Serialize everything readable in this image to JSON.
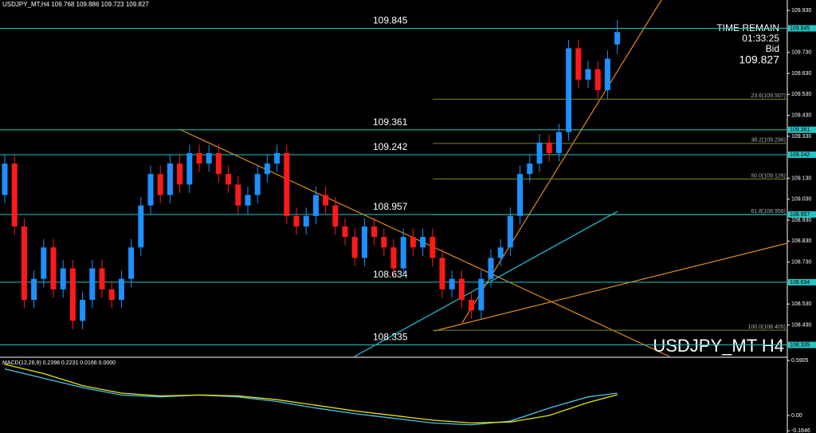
{
  "chart_data": [
    {
      "type": "candlestick",
      "symbol": "USDJPY_MT,H4",
      "watermark": "USDJPY_MT H4",
      "time_remain_label": "TIME REMAIN",
      "time_remain": "01:33:25",
      "bid_label": "Bid",
      "up_color": "#1e90ff",
      "down_color": "#ff1a1a",
      "ylim": [
        108.28,
        109.98
      ],
      "yticks": [
        {
          "value": 109.93,
          "label": "109.930"
        },
        {
          "value": 109.73,
          "label": "109.730"
        },
        {
          "value": 109.63,
          "label": "109.630"
        },
        {
          "value": 109.53,
          "label": "109.530"
        },
        {
          "value": 109.43,
          "label": "109.430"
        },
        {
          "value": 109.33,
          "label": "109.330"
        },
        {
          "value": 109.13,
          "label": "109.130"
        },
        {
          "value": 109.03,
          "label": "109.030"
        },
        {
          "value": 108.93,
          "label": "108.930"
        },
        {
          "value": 108.83,
          "label": "108.830"
        },
        {
          "value": 108.73,
          "label": "108.730"
        },
        {
          "value": 108.53,
          "label": "108.530"
        },
        {
          "value": 108.43,
          "label": "108.430"
        }
      ],
      "levels": [
        109.845,
        109.361,
        109.242,
        108.957,
        108.634,
        108.335
      ],
      "fib_levels": [
        {
          "value": 109.507,
          "label": "23.6(109.507)"
        },
        {
          "value": 109.296,
          "label": "38.2(109.296)"
        },
        {
          "value": 109.126,
          "label": "50.0(109.126)"
        },
        {
          "value": 108.956,
          "label": "61.8(108.956)"
        },
        {
          "value": 108.405,
          "label": "100.0(108.405)"
        }
      ],
      "open": [
        109.05,
        109.2,
        108.9,
        108.55,
        108.65,
        108.8,
        108.6,
        108.7,
        108.45,
        108.55,
        108.7,
        108.6,
        108.55,
        108.65,
        108.8,
        109.0,
        109.15,
        109.05,
        109.2,
        109.1,
        109.25,
        109.2,
        109.25,
        109.15,
        109.1,
        109.0,
        109.05,
        109.15,
        109.2,
        109.25,
        108.95,
        108.9,
        108.95,
        109.05,
        109.0,
        108.9,
        108.85,
        108.75,
        108.9,
        108.85,
        108.8,
        108.7,
        108.85,
        108.8,
        108.85,
        108.75,
        108.6,
        108.65,
        108.55,
        108.5,
        108.65,
        108.75,
        108.8,
        108.95,
        109.15,
        109.2,
        109.3,
        109.25,
        109.35,
        109.75,
        109.6,
        109.65,
        109.55,
        109.768
      ],
      "high": [
        109.24,
        109.24,
        108.94,
        108.69,
        108.84,
        108.84,
        108.74,
        108.74,
        108.59,
        108.74,
        108.74,
        108.64,
        108.69,
        108.84,
        109.04,
        109.19,
        109.19,
        109.24,
        109.24,
        109.29,
        109.29,
        109.29,
        109.29,
        109.19,
        109.14,
        109.09,
        109.19,
        109.24,
        109.29,
        109.29,
        108.99,
        108.99,
        109.09,
        109.09,
        109.04,
        108.94,
        108.89,
        108.94,
        108.94,
        108.89,
        108.84,
        108.89,
        108.89,
        108.89,
        108.89,
        108.79,
        108.69,
        108.69,
        108.59,
        108.69,
        108.79,
        108.84,
        108.99,
        109.19,
        109.24,
        109.34,
        109.34,
        109.39,
        109.79,
        109.79,
        109.69,
        109.69,
        109.74,
        109.886
      ],
      "low": [
        109.01,
        108.86,
        108.51,
        108.51,
        108.61,
        108.56,
        108.56,
        108.41,
        108.41,
        108.51,
        108.56,
        108.51,
        108.51,
        108.61,
        108.76,
        108.96,
        109.01,
        109.01,
        109.06,
        109.06,
        109.16,
        109.16,
        109.11,
        109.06,
        108.96,
        108.96,
        109.01,
        109.11,
        109.16,
        108.91,
        108.86,
        108.86,
        108.91,
        108.96,
        108.86,
        108.81,
        108.71,
        108.71,
        108.81,
        108.76,
        108.66,
        108.66,
        108.76,
        108.76,
        108.71,
        108.56,
        108.56,
        108.51,
        108.46,
        108.46,
        108.61,
        108.71,
        108.76,
        108.91,
        109.11,
        109.16,
        109.21,
        109.21,
        109.31,
        109.56,
        109.56,
        109.51,
        109.51,
        109.723
      ],
      "close": [
        109.2,
        108.9,
        108.55,
        108.65,
        108.8,
        108.6,
        108.7,
        108.45,
        108.55,
        108.7,
        108.6,
        108.55,
        108.65,
        108.8,
        109.0,
        109.15,
        109.05,
        109.2,
        109.1,
        109.25,
        109.2,
        109.25,
        109.15,
        109.1,
        109.0,
        109.05,
        109.15,
        109.2,
        109.25,
        108.95,
        108.9,
        108.95,
        109.05,
        109.0,
        108.9,
        108.85,
        108.75,
        108.9,
        108.85,
        108.8,
        108.7,
        108.85,
        108.8,
        108.85,
        108.75,
        108.6,
        108.65,
        108.55,
        108.5,
        108.65,
        108.75,
        108.8,
        108.95,
        109.15,
        109.2,
        109.3,
        109.25,
        109.35,
        109.75,
        109.6,
        109.65,
        109.55,
        109.7,
        109.827
      ]
    },
    {
      "type": "line",
      "title": "MACD(12,26,9) 0.2398 0.2231 0.0166 0.0000",
      "ylim": [
        -0.188,
        0.617
      ],
      "yticks": [
        0.5905,
        {
          "value": 0,
          "label": "0.00"
        },
        -0.1646
      ],
      "x": [
        0,
        4,
        8,
        12,
        16,
        20,
        24,
        28,
        32,
        36,
        40,
        44,
        48,
        52,
        56,
        60,
        63
      ],
      "series": [
        {
          "name": "MACD",
          "color": "#4fc3e8",
          "values": [
            0.5,
            0.4,
            0.3,
            0.22,
            0.2,
            0.22,
            0.2,
            0.15,
            0.08,
            0.02,
            -0.03,
            -0.08,
            -0.1,
            -0.06,
            0.08,
            0.2,
            0.2398
          ]
        },
        {
          "name": "Signal",
          "color": "#e6e600",
          "values": [
            0.55,
            0.45,
            0.32,
            0.24,
            0.21,
            0.22,
            0.21,
            0.17,
            0.11,
            0.05,
            0.0,
            -0.05,
            -0.08,
            -0.07,
            0.0,
            0.14,
            0.2231
          ]
        }
      ]
    }
  ]
}
